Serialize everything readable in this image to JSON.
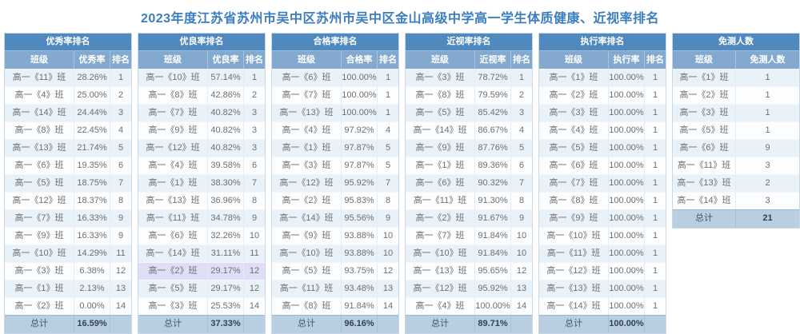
{
  "title": "2023年度江苏省苏州市吴中区苏州市吴中区金山高级中学高一学生体质健康、近视率排名",
  "total_label": "总计",
  "colors": {
    "title_text": "#3b7dc1",
    "table_header_bg": "#5089be",
    "column_header_bg": "#83a9cf",
    "row_odd_bg": "#eaf2f9",
    "row_even_bg": "#fcfdfe",
    "highlight_row_bg": "#dfddf8",
    "total_row_bg": "#b9cfe1"
  },
  "tables": [
    {
      "name": "优秀率排名",
      "columns": [
        "班级",
        "优秀率",
        "排名"
      ],
      "highlight_row": -1,
      "rows": [
        [
          "高一《11》班",
          "28.26%",
          "1"
        ],
        [
          "高一《4》班",
          "25.00%",
          "2"
        ],
        [
          "高一《14》班",
          "24.44%",
          "3"
        ],
        [
          "高一《8》班",
          "22.45%",
          "4"
        ],
        [
          "高一《13》班",
          "21.74%",
          "5"
        ],
        [
          "高一《6》班",
          "19.35%",
          "6"
        ],
        [
          "高一《5》班",
          "18.75%",
          "7"
        ],
        [
          "高一《12》班",
          "18.37%",
          "8"
        ],
        [
          "高一《7》班",
          "16.33%",
          "9"
        ],
        [
          "高一《9》班",
          "16.33%",
          "9"
        ],
        [
          "高一《10》班",
          "14.29%",
          "11"
        ],
        [
          "高一《3》班",
          "6.38%",
          "12"
        ],
        [
          "高一《1》班",
          "2.13%",
          "13"
        ],
        [
          "高一《2》班",
          "0.00%",
          "14"
        ]
      ],
      "total_value": "16.59%"
    },
    {
      "name": "优良率排名",
      "columns": [
        "班级",
        "优良率",
        "排名"
      ],
      "highlight_row": 11,
      "rows": [
        [
          "高一《10》班",
          "57.14%",
          "1"
        ],
        [
          "高一《8》班",
          "42.86%",
          "2"
        ],
        [
          "高一《7》班",
          "40.82%",
          "3"
        ],
        [
          "高一《9》班",
          "40.82%",
          "3"
        ],
        [
          "高一《12》班",
          "40.82%",
          "3"
        ],
        [
          "高一《4》班",
          "39.58%",
          "6"
        ],
        [
          "高一《1》班",
          "38.30%",
          "7"
        ],
        [
          "高一《13》班",
          "36.96%",
          "8"
        ],
        [
          "高一《11》班",
          "34.78%",
          "9"
        ],
        [
          "高一《6》班",
          "32.26%",
          "10"
        ],
        [
          "高一《14》班",
          "31.11%",
          "11"
        ],
        [
          "高一《2》班",
          "29.17%",
          "12"
        ],
        [
          "高一《5》班",
          "29.17%",
          "12"
        ],
        [
          "高一《3》班",
          "25.53%",
          "14"
        ]
      ],
      "total_value": "37.33%"
    },
    {
      "name": "合格率排名",
      "columns": [
        "班级",
        "合格率",
        "排名"
      ],
      "highlight_row": -1,
      "rows": [
        [
          "高一《6》班",
          "100.00%",
          "1"
        ],
        [
          "高一《7》班",
          "100.00%",
          "1"
        ],
        [
          "高一《13》班",
          "100.00%",
          "1"
        ],
        [
          "高一《4》班",
          "97.92%",
          "4"
        ],
        [
          "高一《1》班",
          "97.87%",
          "5"
        ],
        [
          "高一《3》班",
          "97.87%",
          "5"
        ],
        [
          "高一《12》班",
          "95.92%",
          "7"
        ],
        [
          "高一《2》班",
          "95.83%",
          "8"
        ],
        [
          "高一《14》班",
          "95.56%",
          "9"
        ],
        [
          "高一《9》班",
          "93.88%",
          "10"
        ],
        [
          "高一《10》班",
          "93.88%",
          "10"
        ],
        [
          "高一《5》班",
          "93.75%",
          "12"
        ],
        [
          "高一《11》班",
          "93.48%",
          "13"
        ],
        [
          "高一《8》班",
          "91.84%",
          "14"
        ]
      ],
      "total_value": "96.16%"
    },
    {
      "name": "近视率排名",
      "columns": [
        "班级",
        "近视率",
        "排名"
      ],
      "highlight_row": -1,
      "rows": [
        [
          "高一《3》班",
          "78.72%",
          "1"
        ],
        [
          "高一《8》班",
          "79.59%",
          "2"
        ],
        [
          "高一《5》班",
          "85.42%",
          "3"
        ],
        [
          "高一《14》班",
          "86.67%",
          "4"
        ],
        [
          "高一《9》班",
          "87.76%",
          "5"
        ],
        [
          "高一《1》班",
          "89.36%",
          "6"
        ],
        [
          "高一《6》班",
          "90.32%",
          "7"
        ],
        [
          "高一《11》班",
          "91.30%",
          "8"
        ],
        [
          "高一《2》班",
          "91.67%",
          "9"
        ],
        [
          "高一《7》班",
          "91.84%",
          "10"
        ],
        [
          "高一《10》班",
          "91.84%",
          "10"
        ],
        [
          "高一《13》班",
          "95.65%",
          "12"
        ],
        [
          "高一《12》班",
          "95.92%",
          "13"
        ],
        [
          "高一《4》班",
          "100.00%",
          "14"
        ]
      ],
      "total_value": "89.71%"
    },
    {
      "name": "执行率排名",
      "columns": [
        "班级",
        "执行率",
        "排名"
      ],
      "highlight_row": -1,
      "rows": [
        [
          "高一《1》班",
          "100.00%",
          "1"
        ],
        [
          "高一《2》班",
          "100.00%",
          "1"
        ],
        [
          "高一《3》班",
          "100.00%",
          "1"
        ],
        [
          "高一《4》班",
          "100.00%",
          "1"
        ],
        [
          "高一《5》班",
          "100.00%",
          "1"
        ],
        [
          "高一《6》班",
          "100.00%",
          "1"
        ],
        [
          "高一《7》班",
          "100.00%",
          "1"
        ],
        [
          "高一《8》班",
          "100.00%",
          "1"
        ],
        [
          "高一《9》班",
          "100.00%",
          "1"
        ],
        [
          "高一《10》班",
          "100.00%",
          "1"
        ],
        [
          "高一《11》班",
          "100.00%",
          "1"
        ],
        [
          "高一《12》班",
          "100.00%",
          "1"
        ],
        [
          "高一《13》班",
          "100.00%",
          "1"
        ],
        [
          "高一《14》班",
          "100.00%",
          "1"
        ]
      ],
      "total_value": "100.00%"
    },
    {
      "name": "免测人数",
      "columns": [
        "班级",
        "免测人数"
      ],
      "highlight_row": -1,
      "rows": [
        [
          "高一《1》班",
          "1"
        ],
        [
          "高一《2》班",
          "1"
        ],
        [
          "高一《3》班",
          "1"
        ],
        [
          "高一《5》班",
          "1"
        ],
        [
          "高一《6》班",
          "9"
        ],
        [
          "高一《11》班",
          "3"
        ],
        [
          "高一《13》班",
          "2"
        ],
        [
          "高一《14》班",
          "3"
        ]
      ],
      "total_value": "21"
    }
  ]
}
